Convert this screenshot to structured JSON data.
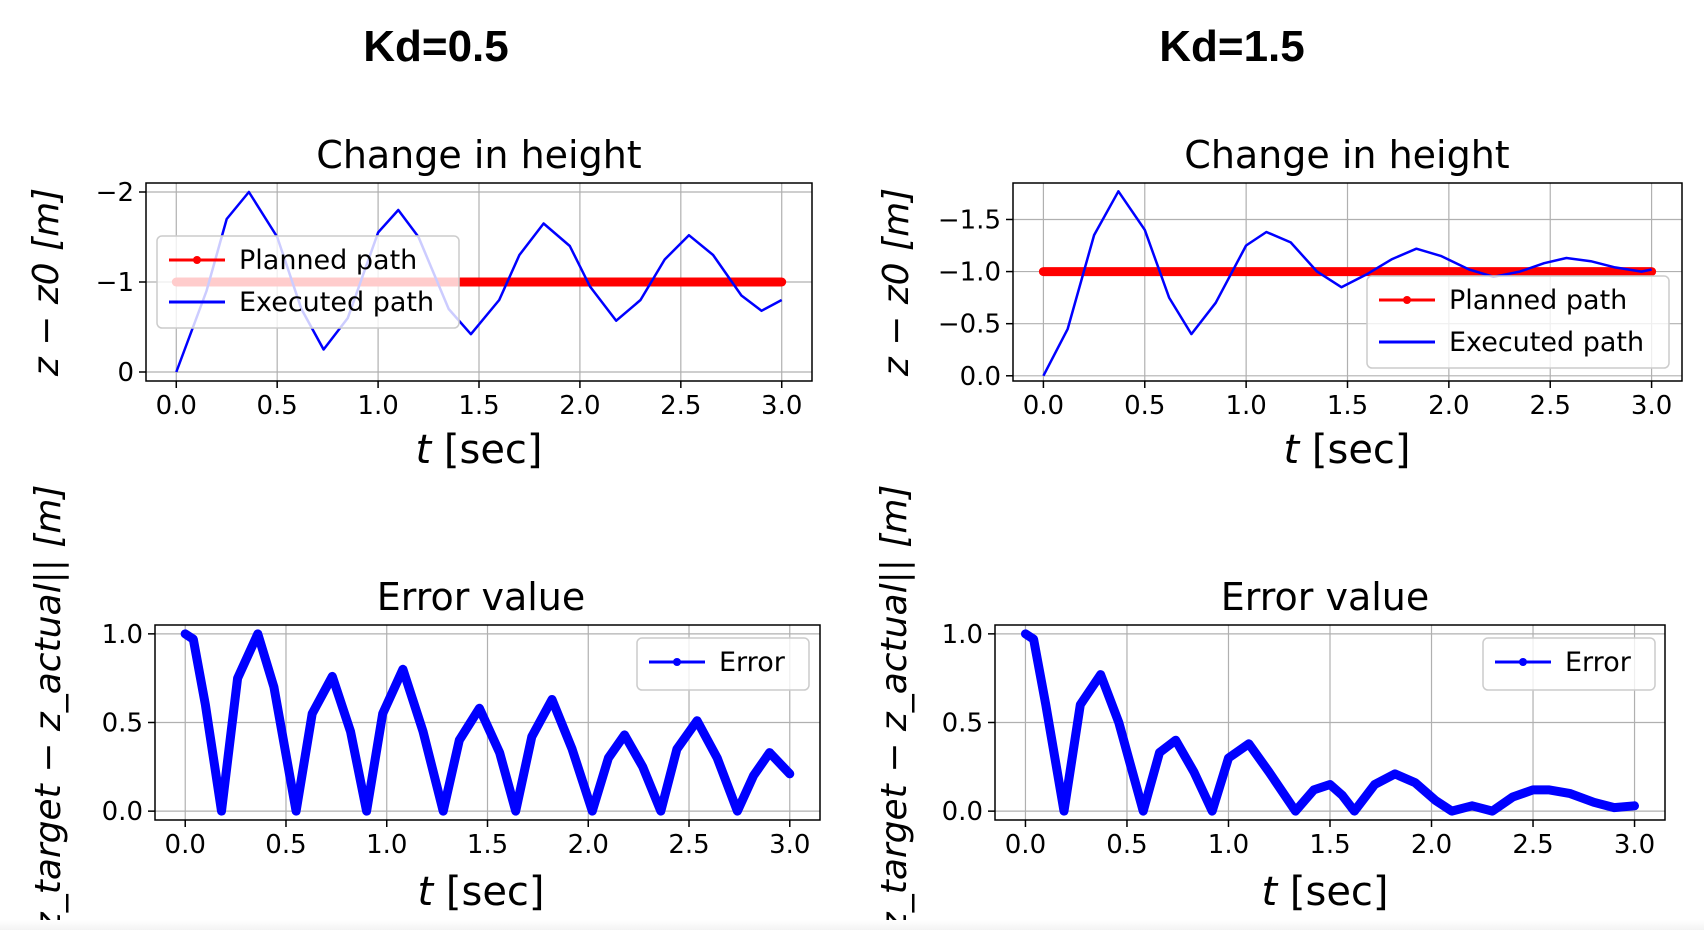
{
  "headers": {
    "left": "Kd=0.5",
    "right": "Kd=1.5"
  },
  "colors": {
    "planned": "#ff0000",
    "executed": "#0000ff",
    "error": "#0000ff",
    "grid": "#b0b0b0"
  },
  "chart_data": [
    {
      "id": "left-top",
      "type": "line",
      "title": "Change in height",
      "xlabel": "t [sec]",
      "ylabel": "z − z0 [m]",
      "xlim": [
        -0.15,
        3.15
      ],
      "ylim": [
        0.1,
        -2.1
      ],
      "xticks": [
        0.0,
        0.5,
        1.0,
        1.5,
        2.0,
        2.5,
        3.0
      ],
      "xtick_labels": [
        "0.0",
        "0.5",
        "1.0",
        "1.5",
        "2.0",
        "2.5",
        "3.0"
      ],
      "yticks": [
        0,
        -1,
        -2
      ],
      "ytick_labels": [
        "0",
        "−1",
        "−2"
      ],
      "grid": true,
      "legend": {
        "position": "center-left",
        "entries": [
          "Planned path",
          "Executed path"
        ]
      },
      "series": [
        {
          "name": "Planned path",
          "x": [
            0,
            3
          ],
          "y": [
            -1,
            -1
          ]
        },
        {
          "name": "Executed path",
          "x": [
            0.0,
            0.15,
            0.25,
            0.36,
            0.5,
            0.62,
            0.73,
            0.85,
            1.0,
            1.1,
            1.2,
            1.35,
            1.46,
            1.6,
            1.7,
            1.82,
            1.95,
            2.05,
            2.18,
            2.3,
            2.42,
            2.54,
            2.66,
            2.8,
            2.9,
            3.0
          ],
          "y": [
            0.0,
            -0.9,
            -1.7,
            -2.0,
            -1.5,
            -0.7,
            -0.25,
            -0.6,
            -1.55,
            -1.8,
            -1.5,
            -0.7,
            -0.42,
            -0.8,
            -1.3,
            -1.65,
            -1.4,
            -0.95,
            -0.57,
            -0.8,
            -1.25,
            -1.52,
            -1.3,
            -0.85,
            -0.68,
            -0.8
          ]
        }
      ]
    },
    {
      "id": "right-top",
      "type": "line",
      "title": "Change in height",
      "xlabel": "t [sec]",
      "ylabel": "z − z0 [m]",
      "xlim": [
        -0.15,
        3.15
      ],
      "ylim": [
        0.05,
        -1.85
      ],
      "xticks": [
        0.0,
        0.5,
        1.0,
        1.5,
        2.0,
        2.5,
        3.0
      ],
      "xtick_labels": [
        "0.0",
        "0.5",
        "1.0",
        "1.5",
        "2.0",
        "2.5",
        "3.0"
      ],
      "yticks": [
        0.0,
        -0.5,
        -1.0,
        -1.5
      ],
      "ytick_labels": [
        "0.0",
        "−0.5",
        "−1.0",
        "−1.5"
      ],
      "grid": true,
      "legend": {
        "position": "lower-right",
        "entries": [
          "Planned path",
          "Executed path"
        ]
      },
      "series": [
        {
          "name": "Planned path",
          "x": [
            0,
            3
          ],
          "y": [
            -1,
            -1
          ]
        },
        {
          "name": "Executed path",
          "x": [
            0.0,
            0.12,
            0.25,
            0.37,
            0.5,
            0.62,
            0.73,
            0.85,
            1.0,
            1.1,
            1.22,
            1.35,
            1.47,
            1.6,
            1.72,
            1.84,
            1.96,
            2.1,
            2.22,
            2.35,
            2.47,
            2.58,
            2.7,
            2.82,
            2.95,
            3.0
          ],
          "y": [
            0.0,
            -0.45,
            -1.35,
            -1.77,
            -1.4,
            -0.75,
            -0.4,
            -0.7,
            -1.25,
            -1.38,
            -1.28,
            -1.0,
            -0.85,
            -0.98,
            -1.12,
            -1.22,
            -1.15,
            -1.02,
            -0.95,
            -1.0,
            -1.08,
            -1.13,
            -1.1,
            -1.04,
            -1.0,
            -1.02
          ]
        }
      ]
    },
    {
      "id": "left-bottom",
      "type": "line",
      "title": "Error value",
      "xlabel": "t [sec]",
      "ylabel": "||z_target − z_actual|| [m]",
      "xlim": [
        -0.15,
        3.15
      ],
      "ylim": [
        -0.05,
        1.05
      ],
      "xticks": [
        0.0,
        0.5,
        1.0,
        1.5,
        2.0,
        2.5,
        3.0
      ],
      "xtick_labels": [
        "0.0",
        "0.5",
        "1.0",
        "1.5",
        "2.0",
        "2.5",
        "3.0"
      ],
      "yticks": [
        0.0,
        0.5,
        1.0
      ],
      "ytick_labels": [
        "0.0",
        "0.5",
        "1.0"
      ],
      "grid": true,
      "legend": {
        "position": "upper-right",
        "entries": [
          "Error"
        ]
      },
      "series": [
        {
          "name": "Error",
          "x": [
            0.0,
            0.04,
            0.1,
            0.18,
            0.26,
            0.36,
            0.44,
            0.55,
            0.63,
            0.73,
            0.82,
            0.9,
            0.98,
            1.08,
            1.18,
            1.28,
            1.36,
            1.46,
            1.56,
            1.64,
            1.72,
            1.82,
            1.92,
            2.02,
            2.1,
            2.18,
            2.27,
            2.36,
            2.44,
            2.54,
            2.64,
            2.74,
            2.82,
            2.9,
            3.0
          ],
          "y": [
            1.0,
            0.97,
            0.6,
            0.0,
            0.75,
            1.0,
            0.7,
            0.0,
            0.55,
            0.76,
            0.45,
            0.0,
            0.55,
            0.8,
            0.45,
            0.0,
            0.4,
            0.58,
            0.33,
            0.0,
            0.42,
            0.63,
            0.35,
            0.0,
            0.3,
            0.43,
            0.25,
            0.0,
            0.35,
            0.51,
            0.3,
            0.0,
            0.2,
            0.33,
            0.21
          ]
        }
      ]
    },
    {
      "id": "right-bottom",
      "type": "line",
      "title": "Error value",
      "xlabel": "t [sec]",
      "ylabel": "||z_target − z_actual|| [m]",
      "xlim": [
        -0.15,
        3.15
      ],
      "ylim": [
        -0.05,
        1.05
      ],
      "xticks": [
        0.0,
        0.5,
        1.0,
        1.5,
        2.0,
        2.5,
        3.0
      ],
      "xtick_labels": [
        "0.0",
        "0.5",
        "1.0",
        "1.5",
        "2.0",
        "2.5",
        "3.0"
      ],
      "yticks": [
        0.0,
        0.5,
        1.0
      ],
      "ytick_labels": [
        "0.0",
        "0.5",
        "1.0"
      ],
      "grid": true,
      "legend": {
        "position": "upper-right",
        "entries": [
          "Error"
        ]
      },
      "series": [
        {
          "name": "Error",
          "x": [
            0.0,
            0.04,
            0.1,
            0.19,
            0.27,
            0.37,
            0.46,
            0.58,
            0.66,
            0.74,
            0.83,
            0.92,
            1.0,
            1.1,
            1.2,
            1.33,
            1.42,
            1.5,
            1.56,
            1.62,
            1.72,
            1.82,
            1.92,
            2.02,
            2.1,
            2.2,
            2.3,
            2.4,
            2.5,
            2.58,
            2.68,
            2.8,
            2.9,
            3.0
          ],
          "y": [
            1.0,
            0.97,
            0.6,
            0.0,
            0.6,
            0.77,
            0.5,
            0.0,
            0.33,
            0.4,
            0.22,
            0.0,
            0.3,
            0.38,
            0.22,
            0.0,
            0.12,
            0.15,
            0.09,
            0.0,
            0.15,
            0.21,
            0.16,
            0.06,
            0.0,
            0.03,
            0.0,
            0.08,
            0.12,
            0.12,
            0.1,
            0.05,
            0.02,
            0.03
          ]
        }
      ]
    }
  ]
}
